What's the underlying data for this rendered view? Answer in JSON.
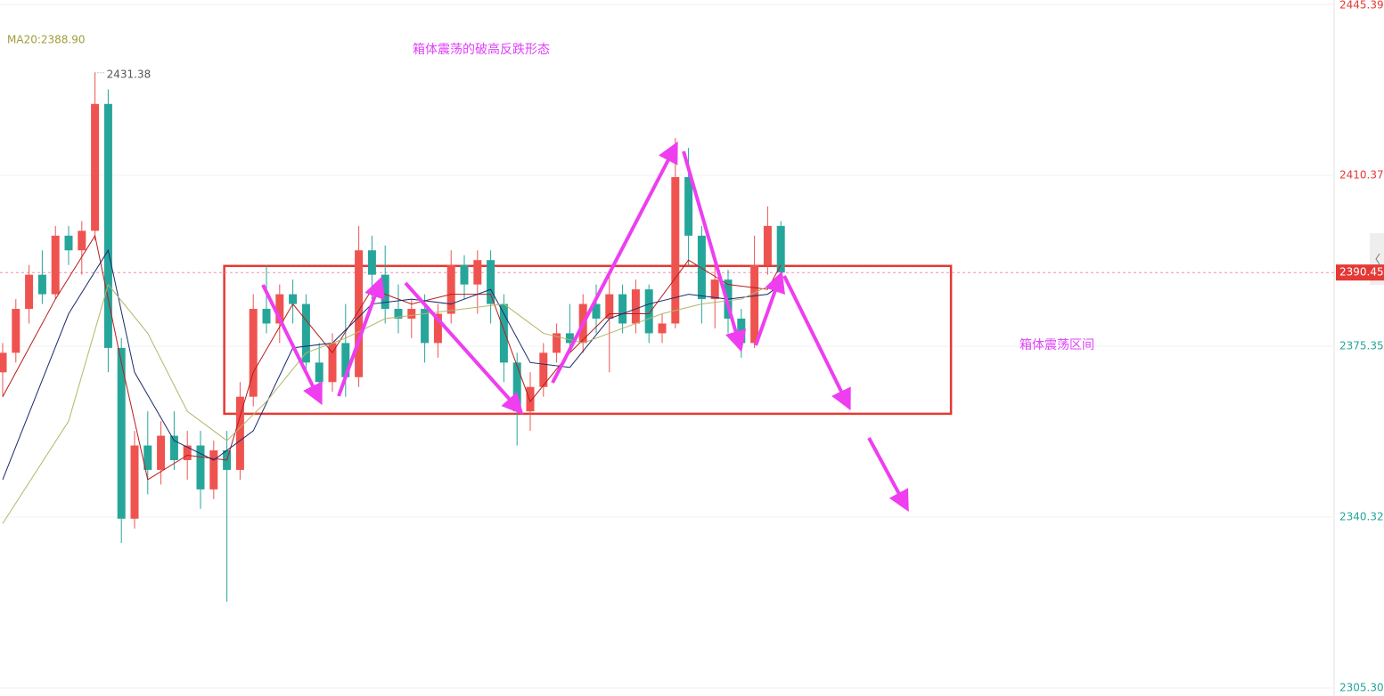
{
  "chart_data": {
    "type": "candlestick",
    "title": "箱体震荡的破高反跌形态",
    "legend": "MA20:2388.90",
    "up_color": "#ef5350",
    "down_color": "#26a69a",
    "open": [
      2370,
      2374,
      2383,
      2390,
      2386,
      2398,
      2395,
      2399,
      2425,
      2375,
      2340,
      2355,
      2350,
      2357,
      2352,
      2355,
      2346,
      2354,
      2350,
      2365,
      2383,
      2380,
      2386,
      2384,
      2372,
      2368,
      2376,
      2369,
      2395,
      2390,
      2383,
      2381,
      2383,
      2376,
      2382,
      2392,
      2388,
      2393,
      2384,
      2372,
      2362,
      2367,
      2374,
      2378,
      2376,
      2384,
      2381,
      2386,
      2380,
      2387,
      2378,
      2380,
      2410,
      2398,
      2385,
      2389,
      2381,
      2376,
      2392,
      2400
    ],
    "high": [
      2376,
      2385,
      2392,
      2395,
      2400,
      2400,
      2401,
      2431.38,
      2428,
      2377,
      2358,
      2362,
      2360,
      2362,
      2358,
      2358,
      2356,
      2358,
      2368,
      2386,
      2392,
      2388,
      2389,
      2386,
      2376,
      2378,
      2384,
      2400,
      2398,
      2396,
      2388,
      2385,
      2386,
      2384,
      2395,
      2394,
      2395,
      2395,
      2386,
      2374,
      2370,
      2376,
      2380,
      2384,
      2386,
      2388,
      2390,
      2388,
      2389,
      2388,
      2382,
      2418,
      2416,
      2400,
      2392,
      2391,
      2383,
      2398,
      2404,
      2401
    ],
    "low": [
      2365,
      2372,
      2380,
      2384,
      2385,
      2392,
      2390,
      2397,
      2370,
      2335,
      2338,
      2345,
      2347,
      2350,
      2348,
      2342,
      2344,
      2323,
      2348,
      2363,
      2378,
      2376,
      2380,
      2370,
      2364,
      2366,
      2365,
      2367,
      2385,
      2380,
      2378,
      2377,
      2372,
      2373,
      2380,
      2385,
      2382,
      2380,
      2368,
      2355,
      2358,
      2365,
      2372,
      2374,
      2374,
      2378,
      2370,
      2378,
      2378,
      2376,
      2376,
      2379,
      2392,
      2380,
      2379,
      2378,
      2373,
      2375,
      2390,
      2388
    ],
    "close": [
      2374,
      2383,
      2390,
      2386,
      2398,
      2395,
      2399,
      2425,
      2375,
      2340,
      2355,
      2350,
      2357,
      2352,
      2355,
      2346,
      2354,
      2350,
      2365,
      2383,
      2380,
      2386,
      2384,
      2372,
      2368,
      2376,
      2369,
      2395,
      2390,
      2383,
      2381,
      2383,
      2376,
      2382,
      2392,
      2388,
      2393,
      2384,
      2372,
      2362,
      2367,
      2374,
      2378,
      2376,
      2384,
      2381,
      2386,
      2380,
      2387,
      2378,
      2380,
      2410,
      2398,
      2385,
      2389,
      2381,
      2376,
      2392,
      2400,
      2390.45
    ],
    "current_price": 2390.45,
    "lines": [
      {
        "color": "#b71c1c",
        "x": [
          0,
          4,
          7,
          9,
          11,
          14,
          17,
          19,
          22,
          25,
          28,
          31,
          34,
          37,
          40,
          43,
          46,
          49,
          52,
          55,
          58,
          59
        ],
        "values": [
          2365,
          2385,
          2398,
          2372,
          2348,
          2353,
          2352,
          2370,
          2384,
          2374,
          2387,
          2384,
          2386,
          2386,
          2364,
          2374,
          2382,
          2382,
          2393,
          2388,
          2387,
          2392
        ]
      },
      {
        "color": "#1a2a6c",
        "x": [
          0,
          5,
          8,
          10,
          13,
          16,
          19,
          22,
          25,
          28,
          31,
          34,
          37,
          40,
          43,
          46,
          49,
          52,
          55,
          58,
          59
        ],
        "values": [
          2348,
          2382,
          2395,
          2370,
          2356,
          2352,
          2358,
          2375,
          2376,
          2384,
          2385,
          2384,
          2387,
          2372,
          2371,
          2381,
          2384,
          2386,
          2385,
          2386,
          2388
        ]
      },
      {
        "color": "#b5b56a",
        "x": [
          0,
          5,
          8,
          11,
          14,
          17,
          20,
          23,
          26,
          29,
          32,
          35,
          38,
          41,
          44,
          47,
          50,
          53,
          56,
          59
        ],
        "values": [
          2339,
          2360,
          2388,
          2378,
          2362,
          2356,
          2364,
          2374,
          2377,
          2381,
          2382,
          2383,
          2384,
          2378,
          2376,
          2379,
          2382,
          2384,
          2385,
          2388.9
        ]
      }
    ],
    "box": {
      "x": [
        16.8,
        71.9
      ],
      "y": [
        2361.5,
        2391.8
      ],
      "label": "箱体震荡区间",
      "color": "#e53935"
    },
    "ylim": [
      2305.3,
      2445.39
    ],
    "yticks": [
      2445.39,
      2410.37,
      2375.35,
      2340.32,
      {
        "value": 2305.3,
        "label": "2305.30"
      }
    ],
    "grid": true
  }
}
